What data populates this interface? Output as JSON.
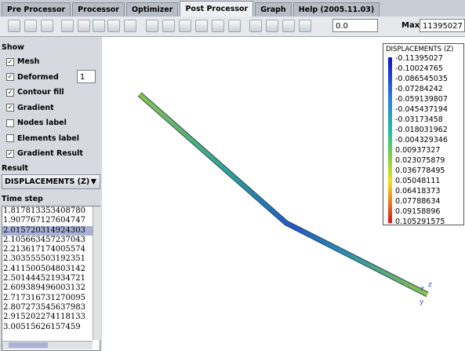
{
  "tabs": [
    "Pre Processor",
    "Processor",
    "Optimizer",
    "Post Processor",
    "Graph",
    "Help (2005.11.03)"
  ],
  "active_tab": 3,
  "toolbar": {
    "min_value": "0.0",
    "max_label": "Max",
    "max_value": "11395027"
  },
  "show_panel": {
    "title": "Show",
    "options": [
      {
        "label": "Mesh",
        "checked": true
      },
      {
        "label": "Deformed",
        "checked": true,
        "input": "1"
      },
      {
        "label": "Contour fill",
        "checked": true
      },
      {
        "label": "Gradient",
        "checked": true
      },
      {
        "label": "Nodes label",
        "checked": false
      },
      {
        "label": "Elements label",
        "checked": false
      },
      {
        "label": "Gradient Result",
        "checked": true
      }
    ]
  },
  "result": {
    "title": "Result",
    "selection": "DISPLACEMENTS (Z)"
  },
  "time_step": {
    "title": "Time step",
    "selected": 2,
    "items": [
      "1.817813353408780",
      "1.907767127604747",
      "2.015720314924303",
      "2.105663457237043",
      "2.213617174005574",
      "2.303555503192351",
      "2.411500504803142",
      "2.501444521934721",
      "2.609389496003132",
      "2.717316731270095",
      "2.807273545637983",
      "2.915202274118133",
      "3.00515626157459"
    ]
  },
  "legend": {
    "title": "DISPLACEMENTS (Z)",
    "values": [
      "-0.11395027",
      "-0.10024765",
      "-0.086545035",
      "-0.07284242",
      "-0.059139807",
      "-0.045437194",
      "-0.03173458",
      "-0.018031962",
      "-0.004329346",
      "0.00937327",
      "0.023075879",
      "0.036778495",
      "0.05048111",
      "0.06418373",
      "0.07788634",
      "0.09158896",
      "0.105291575"
    ]
  },
  "axes": {
    "labels": [
      "x",
      "z",
      "y"
    ]
  }
}
